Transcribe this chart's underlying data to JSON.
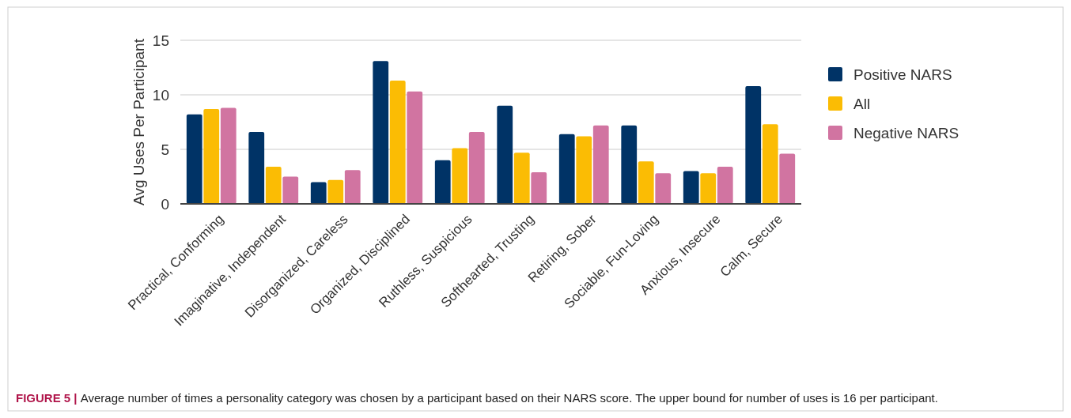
{
  "chart_data": {
    "type": "bar",
    "ylabel": "Avg Uses Per Participant",
    "categories": [
      "Practical, Conforming",
      "Imaginative, Independent",
      "Disorganized, Careless",
      "Organized, Disciplined",
      "Ruthless, Suspicious",
      "Softhearted, Trusting",
      "Retiring, Sober",
      "Sociable, Fun-Loving",
      "Anxious, Insecure",
      "Calm, Secure"
    ],
    "series": [
      {
        "name": "Positive NARS",
        "color": "#003366",
        "values": [
          8.2,
          6.6,
          2.0,
          13.1,
          4.0,
          9.0,
          6.4,
          7.2,
          3.0,
          10.8
        ]
      },
      {
        "name": "All",
        "color": "#fbbc04",
        "values": [
          8.7,
          3.4,
          2.2,
          11.3,
          5.1,
          4.7,
          6.2,
          3.9,
          2.8,
          7.3
        ]
      },
      {
        "name": "Negative NARS",
        "color": "#d174a1",
        "values": [
          8.8,
          2.5,
          3.1,
          10.3,
          6.6,
          2.9,
          7.2,
          2.8,
          3.4,
          4.6
        ]
      }
    ],
    "ylim": [
      0,
      15
    ],
    "yticks": [
      0,
      5,
      10,
      15
    ],
    "grid": "y",
    "legend": "right",
    "annotations": [
      "FIGURE 5 |",
      "Average number of times a personality category was chosen by a participant based on their NARS score. The upper bound for number of uses is 16 per participant."
    ]
  }
}
